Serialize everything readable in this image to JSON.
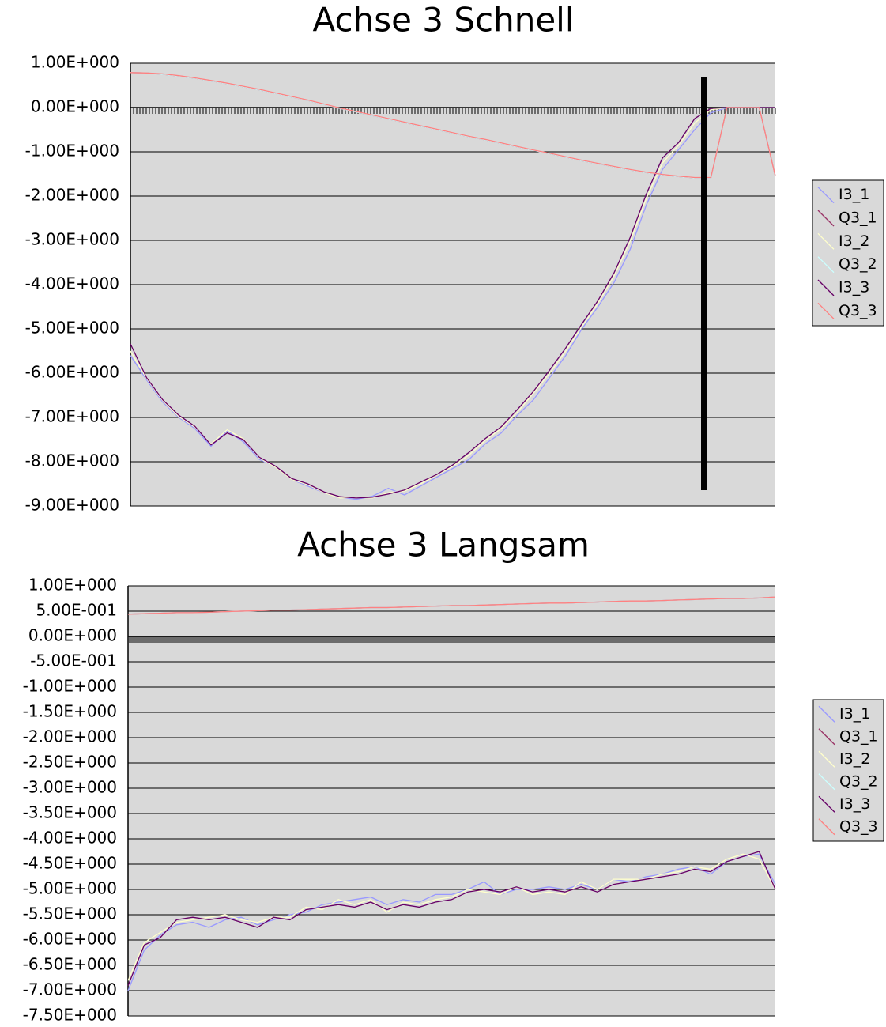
{
  "chart_data": [
    {
      "type": "line",
      "title": "Achse 3 Schnell",
      "ylim": [
        -9,
        1
      ],
      "yticks": [
        {
          "value": 1,
          "label": "1.00E+000"
        },
        {
          "value": 0,
          "label": "0.00E+000"
        },
        {
          "value": -1,
          "label": "-1.00E+000"
        },
        {
          "value": -2,
          "label": "-2.00E+000"
        },
        {
          "value": -3,
          "label": "-3.00E+000"
        },
        {
          "value": -4,
          "label": "-4.00E+000"
        },
        {
          "value": -5,
          "label": "-5.00E+000"
        },
        {
          "value": -6,
          "label": "-6.00E+000"
        },
        {
          "value": -7,
          "label": "-7.00E+000"
        },
        {
          "value": -8,
          "label": "-8.00E+000"
        },
        {
          "value": -9,
          "label": "-9.00E+000"
        }
      ],
      "grid": true,
      "legend": "right",
      "series": [
        {
          "name": "I3_1",
          "color": "#9999ff",
          "values": [
            -5.6,
            -6.15,
            -6.65,
            -7.0,
            -7.25,
            -7.65,
            -7.3,
            -7.55,
            -7.95,
            -8.1,
            -8.4,
            -8.55,
            -8.7,
            -8.8,
            -8.85,
            -8.78,
            -8.6,
            -8.75,
            -8.55,
            -8.35,
            -8.15,
            -7.95,
            -7.6,
            -7.35,
            -6.95,
            -6.6,
            -6.1,
            -5.6,
            -5.0,
            -4.5,
            -3.95,
            -3.2,
            -2.2,
            -1.4,
            -0.95,
            -0.5,
            -0.12,
            0,
            0,
            0,
            0
          ]
        },
        {
          "name": "Q3_1",
          "color": "#993366",
          "values": [
            0.79,
            0.78,
            0.75,
            0.71,
            0.66,
            0.6,
            0.54,
            0.47,
            0.4,
            0.32,
            0.24,
            0.16,
            0.07,
            -0.02,
            -0.1,
            -0.18,
            -0.26,
            -0.34,
            -0.42,
            -0.5,
            -0.58,
            -0.66,
            -0.73,
            -0.81,
            -0.89,
            -0.97,
            -1.04,
            -1.12,
            -1.2,
            -1.27,
            -1.34,
            -1.41,
            -1.47,
            -1.52,
            -1.56,
            -1.59,
            -1.59,
            0,
            0,
            0,
            -1.55
          ]
        },
        {
          "name": "I3_2",
          "color": "#ffffcc",
          "values": [
            -5.5,
            -6.12,
            -6.62,
            -6.98,
            -7.22,
            -7.6,
            -7.28,
            -7.48,
            -7.92,
            -8.12,
            -8.4,
            -8.52,
            -8.7,
            -8.82,
            -8.8,
            -8.82,
            -8.7,
            -8.66,
            -8.5,
            -8.3,
            -8.1,
            -7.85,
            -7.52,
            -7.25,
            -6.88,
            -6.45,
            -6.0,
            -5.5,
            -4.95,
            -4.42,
            -3.8,
            -3.02,
            -2.05,
            -1.25,
            -0.85,
            -0.35,
            -0.05,
            0,
            0,
            0,
            0
          ]
        },
        {
          "name": "Q3_2",
          "color": "#ccffff",
          "values": [
            0.79,
            0.78,
            0.75,
            0.71,
            0.66,
            0.6,
            0.54,
            0.47,
            0.4,
            0.32,
            0.24,
            0.16,
            0.07,
            -0.02,
            -0.1,
            -0.18,
            -0.26,
            -0.34,
            -0.42,
            -0.5,
            -0.58,
            -0.66,
            -0.73,
            -0.81,
            -0.89,
            -0.97,
            -1.04,
            -1.12,
            -1.2,
            -1.27,
            -1.34,
            -1.41,
            -1.47,
            -1.52,
            -1.56,
            -1.59,
            -1.59,
            0,
            0,
            0,
            -1.55
          ]
        },
        {
          "name": "I3_3",
          "color": "#660066",
          "values": [
            -5.34,
            -6.1,
            -6.6,
            -6.95,
            -7.2,
            -7.62,
            -7.35,
            -7.5,
            -7.9,
            -8.1,
            -8.38,
            -8.5,
            -8.68,
            -8.79,
            -8.82,
            -8.8,
            -8.73,
            -8.64,
            -8.46,
            -8.29,
            -8.07,
            -7.79,
            -7.48,
            -7.21,
            -6.82,
            -6.41,
            -5.93,
            -5.43,
            -4.89,
            -4.36,
            -3.73,
            -2.93,
            -1.95,
            -1.14,
            -0.79,
            -0.25,
            -0.02,
            0,
            0,
            0,
            0
          ]
        },
        {
          "name": "Q3_3",
          "color": "#ff8080",
          "values": [
            0.79,
            0.78,
            0.76,
            0.72,
            0.67,
            0.61,
            0.55,
            0.48,
            0.41,
            0.33,
            0.25,
            0.17,
            0.08,
            -0.01,
            -0.09,
            -0.17,
            -0.25,
            -0.33,
            -0.41,
            -0.49,
            -0.57,
            -0.65,
            -0.72,
            -0.8,
            -0.88,
            -0.96,
            -1.03,
            -1.11,
            -1.19,
            -1.26,
            -1.33,
            -1.4,
            -1.46,
            -1.51,
            -1.55,
            -1.58,
            -1.58,
            0,
            0,
            0,
            -1.55
          ]
        }
      ]
    },
    {
      "type": "line",
      "title": "Achse 3 Langsam",
      "ylim": [
        -7.5,
        1
      ],
      "yticks": [
        {
          "value": 1,
          "label": "1.00E+000"
        },
        {
          "value": 0.5,
          "label": "5.00E-001"
        },
        {
          "value": 0,
          "label": "0.00E+000"
        },
        {
          "value": -0.5,
          "label": "-5.00E-001"
        },
        {
          "value": -1,
          "label": "-1.00E+000"
        },
        {
          "value": -1.5,
          "label": "-1.50E+000"
        },
        {
          "value": -2,
          "label": "-2.00E+000"
        },
        {
          "value": -2.5,
          "label": "-2.50E+000"
        },
        {
          "value": -3,
          "label": "-3.00E+000"
        },
        {
          "value": -3.5,
          "label": "-3.50E+000"
        },
        {
          "value": -4,
          "label": "-4.00E+000"
        },
        {
          "value": -4.5,
          "label": "-4.50E+000"
        },
        {
          "value": -5,
          "label": "-5.00E+000"
        },
        {
          "value": -5.5,
          "label": "-5.50E+000"
        },
        {
          "value": -6,
          "label": "-6.00E+000"
        },
        {
          "value": -6.5,
          "label": "-6.50E+000"
        },
        {
          "value": -7,
          "label": "-7.00E+000"
        },
        {
          "value": -7.5,
          "label": "-7.50E+000"
        }
      ],
      "grid": true,
      "legend": "right",
      "series": [
        {
          "name": "I3_1",
          "color": "#9999ff",
          "values": [
            -7.0,
            -6.2,
            -5.9,
            -5.7,
            -5.65,
            -5.75,
            -5.6,
            -5.55,
            -5.7,
            -5.6,
            -5.5,
            -5.45,
            -5.3,
            -5.25,
            -5.2,
            -5.15,
            -5.3,
            -5.2,
            -5.25,
            -5.1,
            -5.1,
            -5.0,
            -4.85,
            -5.1,
            -5.0,
            -5.0,
            -4.95,
            -5.0,
            -4.9,
            -5.0,
            -4.8,
            -4.85,
            -4.75,
            -4.7,
            -4.6,
            -4.55,
            -4.7,
            -4.45,
            -4.35,
            -4.3,
            -4.9
          ]
        },
        {
          "name": "Q3_1",
          "color": "#993366",
          "values": [
            0.44,
            0.45,
            0.46,
            0.47,
            0.47,
            0.48,
            0.49,
            0.5,
            0.51,
            0.52,
            0.52,
            0.53,
            0.54,
            0.55,
            0.56,
            0.57,
            0.57,
            0.58,
            0.59,
            0.6,
            0.61,
            0.61,
            0.62,
            0.63,
            0.64,
            0.65,
            0.66,
            0.66,
            0.67,
            0.68,
            0.69,
            0.7,
            0.7,
            0.71,
            0.72,
            0.73,
            0.74,
            0.75,
            0.75,
            0.76,
            0.78
          ]
        },
        {
          "name": "I3_2",
          "color": "#ffffcc",
          "values": [
            -6.8,
            -6.05,
            -5.85,
            -5.65,
            -5.6,
            -5.55,
            -5.5,
            -5.6,
            -5.65,
            -5.55,
            -5.55,
            -5.35,
            -5.4,
            -5.2,
            -5.3,
            -5.2,
            -5.45,
            -5.25,
            -5.3,
            -5.2,
            -5.15,
            -5.0,
            -5.05,
            -5.1,
            -4.95,
            -5.1,
            -5.05,
            -5.1,
            -4.85,
            -5.0,
            -4.8,
            -4.8,
            -4.8,
            -4.7,
            -4.65,
            -4.55,
            -4.6,
            -4.4,
            -4.3,
            -4.4,
            -5.0
          ]
        },
        {
          "name": "Q3_2",
          "color": "#ccffff",
          "values": [
            0.44,
            0.45,
            0.46,
            0.47,
            0.47,
            0.48,
            0.49,
            0.5,
            0.51,
            0.52,
            0.52,
            0.53,
            0.54,
            0.55,
            0.56,
            0.57,
            0.57,
            0.58,
            0.59,
            0.6,
            0.61,
            0.61,
            0.62,
            0.63,
            0.64,
            0.65,
            0.66,
            0.66,
            0.67,
            0.68,
            0.69,
            0.7,
            0.7,
            0.71,
            0.72,
            0.73,
            0.74,
            0.75,
            0.75,
            0.76,
            0.78
          ]
        },
        {
          "name": "I3_3",
          "color": "#660066",
          "values": [
            -6.9,
            -6.1,
            -5.95,
            -5.6,
            -5.55,
            -5.6,
            -5.55,
            -5.65,
            -5.75,
            -5.55,
            -5.6,
            -5.4,
            -5.35,
            -5.3,
            -5.35,
            -5.25,
            -5.4,
            -5.3,
            -5.35,
            -5.25,
            -5.2,
            -5.05,
            -5.0,
            -5.05,
            -4.95,
            -5.05,
            -5.0,
            -5.05,
            -4.95,
            -5.05,
            -4.9,
            -4.85,
            -4.8,
            -4.75,
            -4.7,
            -4.6,
            -4.65,
            -4.45,
            -4.35,
            -4.25,
            -5.0
          ]
        },
        {
          "name": "Q3_3",
          "color": "#ff8080",
          "values": [
            0.44,
            0.45,
            0.46,
            0.47,
            0.47,
            0.48,
            0.49,
            0.5,
            0.51,
            0.52,
            0.52,
            0.53,
            0.54,
            0.55,
            0.56,
            0.57,
            0.57,
            0.58,
            0.59,
            0.6,
            0.61,
            0.61,
            0.62,
            0.63,
            0.64,
            0.65,
            0.66,
            0.66,
            0.67,
            0.68,
            0.69,
            0.7,
            0.7,
            0.71,
            0.72,
            0.73,
            0.74,
            0.75,
            0.75,
            0.76,
            0.78
          ]
        }
      ]
    }
  ]
}
